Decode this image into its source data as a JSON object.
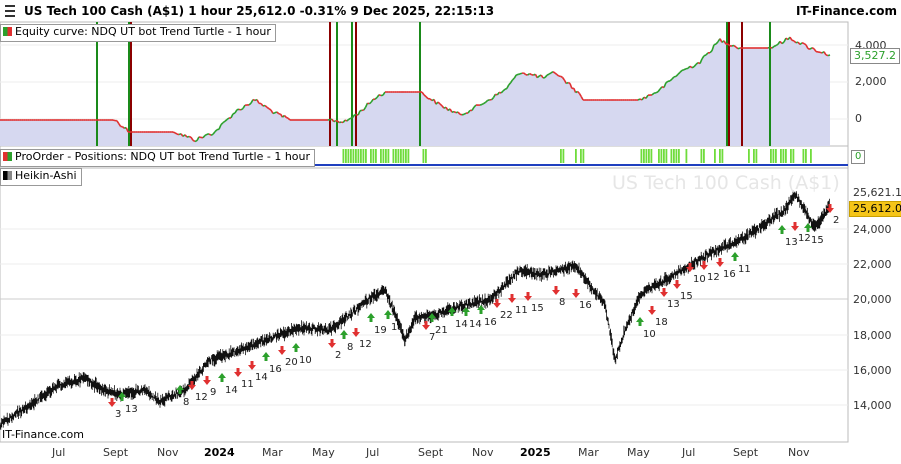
{
  "header": {
    "title": "US Tech 100 Cash (A$1) 1 hour 25,612.0 -0.31% 9 Dec 2025, 22:15:13",
    "brand": "IT-Finance.com"
  },
  "panels": {
    "equity": {
      "label": "Equity curve: NDQ UT bot Trend Turtle - 1 hour",
      "ticks": [
        "4,000",
        "2,000",
        "0"
      ],
      "current_value": "3,527.2",
      "colors": {
        "line_up": "#2ca02c",
        "line_down": "#e03030",
        "fill": "#d6d8f0",
        "long_marker": "#1a8a1a",
        "short_marker": "#8b0000"
      }
    },
    "positions": {
      "label": "ProOrder - Positions: NDQ UT bot Trend Turtle - 1 hour",
      "current_value": "0",
      "colors": {
        "bar": "#6fdc3c",
        "baseline": "#1f3fbf"
      }
    },
    "price": {
      "label": "Heikin-Ashi",
      "watermark": "US Tech 100 Cash (A$1)",
      "ticks": [
        "24,000",
        "22,000",
        "20,000",
        "18,000",
        "16,000",
        "14,000"
      ],
      "high_label": "25,621.1",
      "current_label": "25,612.0",
      "colors": {
        "candle": "#111111",
        "buy_arrow": "#2ca02c",
        "sell_arrow": "#e03030",
        "current_bg": "#f5c518"
      }
    }
  },
  "footer": {
    "brand": "IT-Finance.com",
    "months": [
      "Jul",
      "Sept",
      "Nov",
      "2024",
      "Mar",
      "May",
      "Jul",
      "Sept",
      "Nov",
      "2025",
      "Mar",
      "May",
      "Jul",
      "Sept",
      "Nov"
    ]
  },
  "trade_counts": [
    "3",
    "13",
    "8",
    "12",
    "9",
    "14",
    "11",
    "14",
    "16",
    "20",
    "10",
    "2",
    "8",
    "12",
    "19",
    "11",
    "7",
    "21",
    "14",
    "14",
    "16",
    "22",
    "11",
    "15",
    "8",
    "16",
    "10",
    "18",
    "13",
    "15",
    "10",
    "12",
    "16",
    "11",
    "13",
    "12",
    "15",
    "2"
  ]
}
